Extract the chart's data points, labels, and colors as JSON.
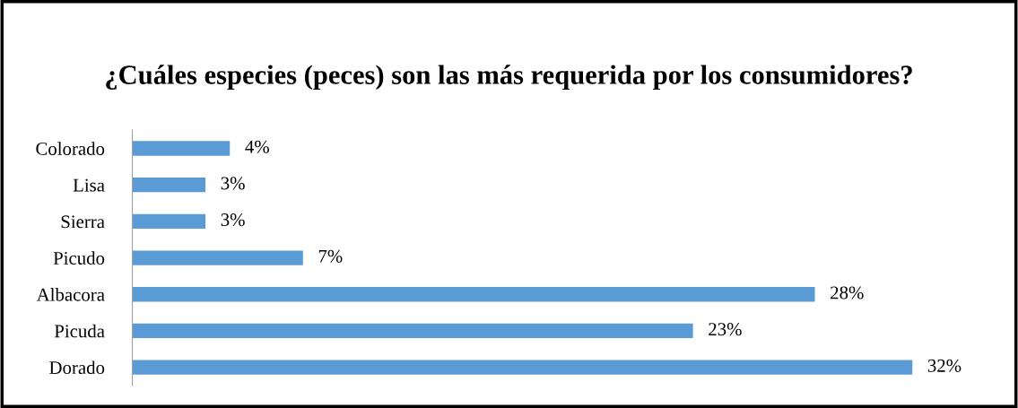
{
  "chart_data": {
    "type": "bar",
    "orientation": "horizontal",
    "title": "¿Cuáles especies (peces) son las más requerida por los consumidores?",
    "categories": [
      "Colorado",
      "Lisa",
      "Sierra",
      "Picudo",
      "Albacora",
      "Picuda",
      "Dorado"
    ],
    "values": [
      4,
      3,
      3,
      7,
      28,
      23,
      32
    ],
    "value_labels": [
      "4%",
      "3%",
      "3%",
      "7%",
      "28%",
      "23%",
      "32%"
    ],
    "color": "#5b9bd5",
    "tick_labels": "y",
    "grid": false,
    "legend": false
  }
}
